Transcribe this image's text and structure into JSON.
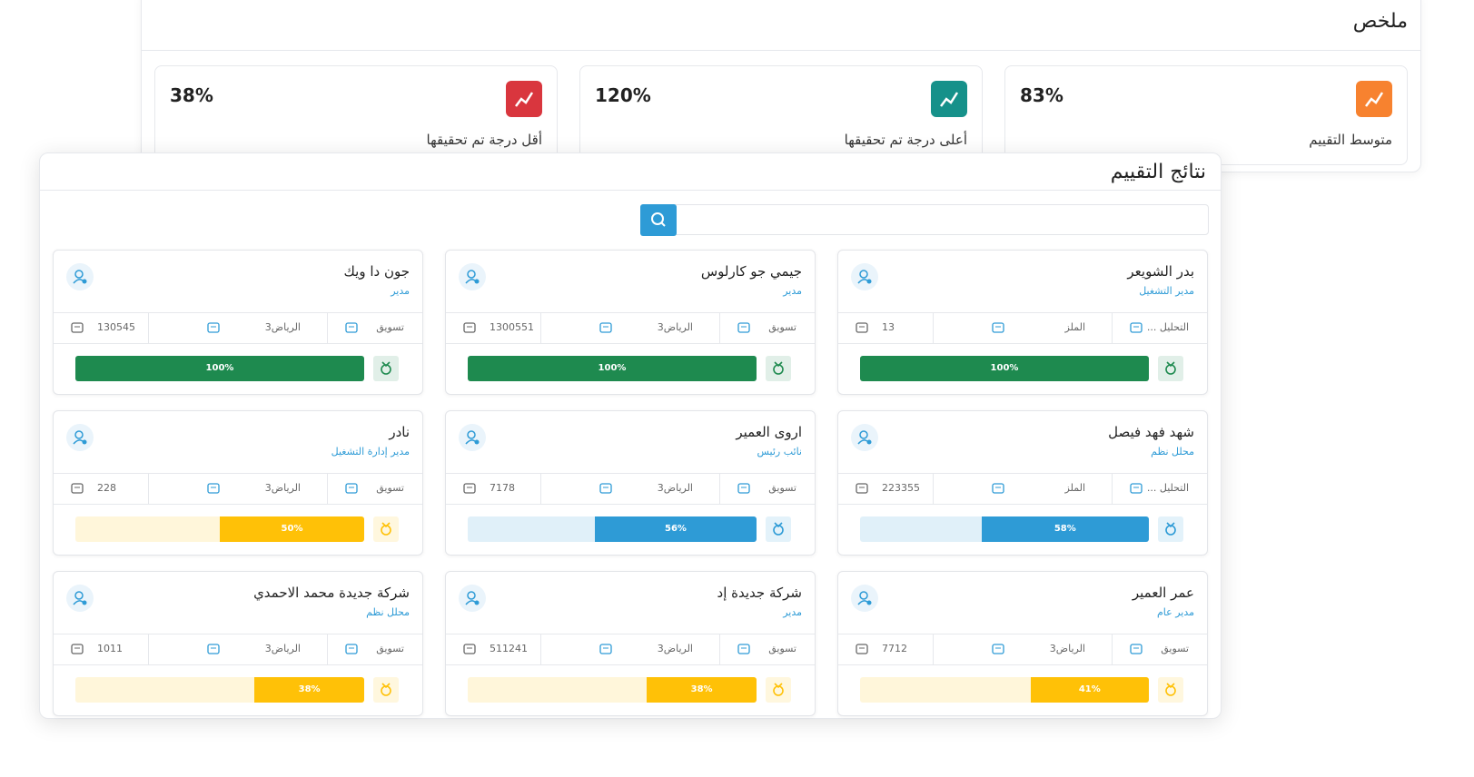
{
  "summary": {
    "title": "ملخص",
    "stats": [
      {
        "label": "متوسط التقييم",
        "value": "83%",
        "color": "#f7822f"
      },
      {
        "label": "أعلى درجة تم تحقيقها",
        "value": "120%",
        "color": "#16918a"
      },
      {
        "label": "أقل درجة تم تحقيقها",
        "value": "38%",
        "color": "#d9363e"
      }
    ]
  },
  "results": {
    "title": "نتائج التقييم",
    "cards": [
      {
        "name": "بدر الشويعر",
        "role": "مدير التشغيل",
        "department": "التحليل ...",
        "city": "الملز",
        "id": "13",
        "progress": 100,
        "progress_label": "100%",
        "color": "#1e8a4f"
      },
      {
        "name": "جيمي جو كارلوس",
        "role": "مدير",
        "department": "تسويق",
        "city": "الرياض3",
        "id": "1300551",
        "progress": 100,
        "progress_label": "100%",
        "color": "#1e8a4f"
      },
      {
        "name": "جون دا ويك",
        "role": "مدير",
        "department": "تسويق",
        "city": "الرياض3",
        "id": "130545",
        "progress": 100,
        "progress_label": "100%",
        "color": "#1e8a4f"
      },
      {
        "name": "شهد فهد فيصل",
        "role": "محلل نظم",
        "department": "التحليل ...",
        "city": "الملز",
        "id": "223355",
        "progress": 58,
        "progress_label": "58%",
        "color": "#2e9bd6"
      },
      {
        "name": "اروى العمير",
        "role": "نائب رئيس",
        "department": "تسويق",
        "city": "الرياض3",
        "id": "7178",
        "progress": 56,
        "progress_label": "56%",
        "color": "#2e9bd6"
      },
      {
        "name": "نادر",
        "role": "مدير إدارة التشغيل",
        "department": "تسويق",
        "city": "الرياض3",
        "id": "228",
        "progress": 50,
        "progress_label": "50%",
        "color": "#ffc107"
      },
      {
        "name": "عمر العمير",
        "role": "مدير عام",
        "department": "تسويق",
        "city": "الرياض3",
        "id": "7712",
        "progress": 41,
        "progress_label": "41%",
        "color": "#ffc107"
      },
      {
        "name": "شركة جديدة إد",
        "role": "مدير",
        "department": "تسويق",
        "city": "الرياض3",
        "id": "511241",
        "progress": 38,
        "progress_label": "38%",
        "color": "#ffc107"
      },
      {
        "name": "شركة جديدة محمد الاحمدي",
        "role": "محلل نظم",
        "department": "تسويق",
        "city": "الرياض3",
        "id": "1011",
        "progress": 38,
        "progress_label": "38%",
        "color": "#ffc107"
      }
    ]
  }
}
